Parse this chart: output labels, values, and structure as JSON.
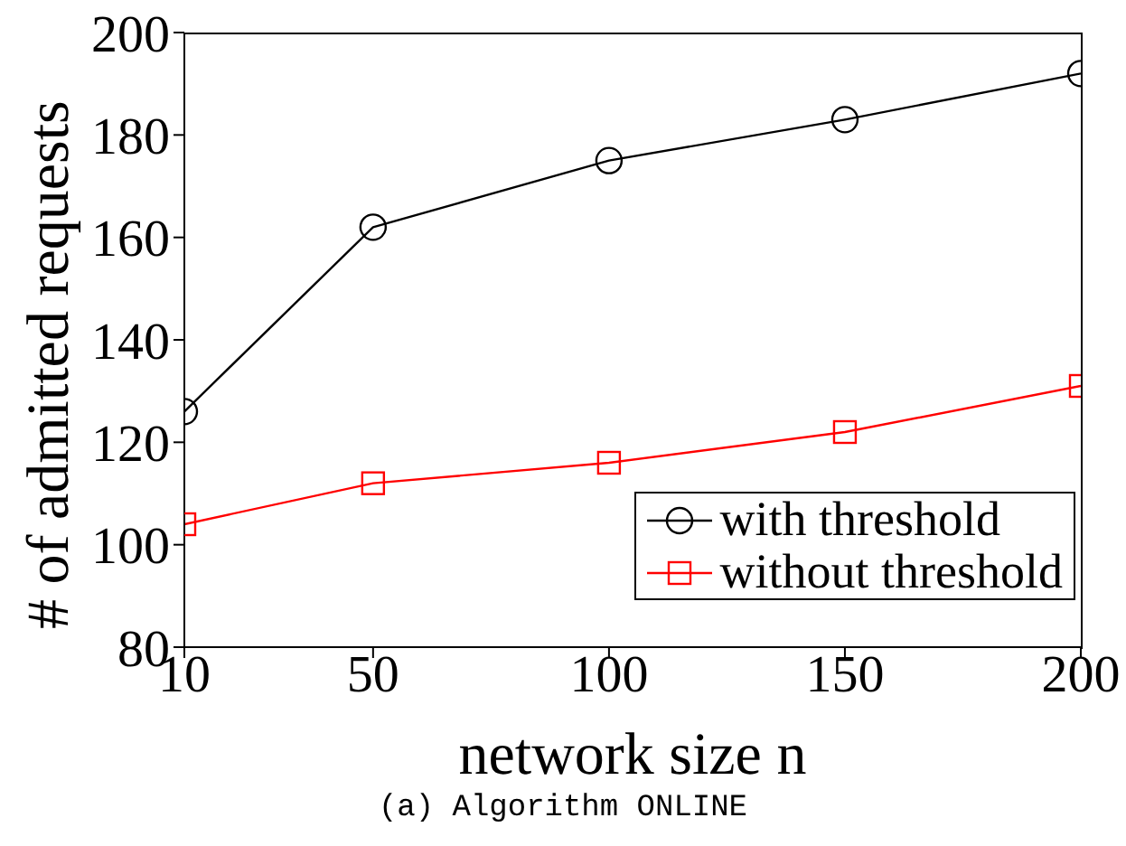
{
  "chart_data": {
    "type": "line",
    "xlabel": "network size n",
    "ylabel": "# of admitted requests",
    "x": [
      10,
      50,
      100,
      150,
      200
    ],
    "series": [
      {
        "name": "with threshold",
        "color": "#000000",
        "marker": "circle",
        "values": [
          126,
          162,
          175,
          183,
          192
        ]
      },
      {
        "name": "without threshold",
        "color": "#ff0000",
        "marker": "square",
        "values": [
          104,
          112,
          116,
          122,
          131
        ]
      }
    ],
    "xlim": [
      10,
      200
    ],
    "xticks": [
      10,
      50,
      100,
      150,
      200
    ],
    "ylim": [
      80,
      200
    ],
    "yticks": [
      80,
      100,
      120,
      140,
      160,
      180,
      200
    ],
    "legend": "bottom right",
    "line_style": "solid",
    "annotations": [
      "(a) Algorithm ONLINE"
    ]
  }
}
